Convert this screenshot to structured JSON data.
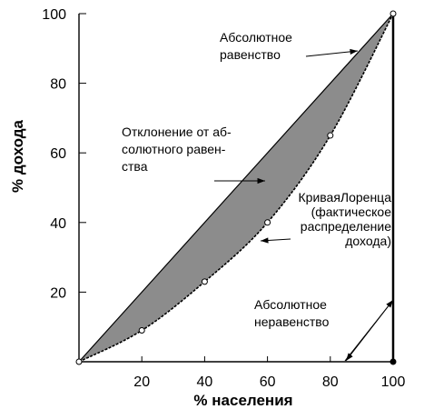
{
  "chart_data": {
    "type": "line",
    "xlabel": "% населения",
    "ylabel": "% дохода",
    "xlim": [
      0,
      100
    ],
    "ylim": [
      0,
      100
    ],
    "grid": false,
    "x_ticks": [
      "20",
      "40",
      "60",
      "80",
      "100"
    ],
    "y_ticks": [
      "20",
      "40",
      "60",
      "80",
      "100"
    ],
    "series": [
      {
        "x": [
          0,
          100
        ],
        "y": [
          0,
          100
        ]
      },
      {
        "x": [
          0,
          20,
          40,
          60,
          80,
          100
        ],
        "y": [
          0,
          9,
          23,
          40,
          65,
          100
        ]
      },
      {
        "x": [
          0,
          100,
          100
        ],
        "y": [
          0,
          0,
          100
        ]
      }
    ],
    "shaded_area": "between line and curve",
    "annotations": {
      "equality": [
        "Абсолютное",
        "равенство"
      ],
      "deviation": [
        "Отклонение от аб-",
        "солютного равен-",
        "ства"
      ],
      "lorenz": [
        "КриваяЛоренца",
        "(фактическое",
        "распределение",
        "дохода)"
      ],
      "inequality": [
        "Абсолютное",
        "неравенство"
      ]
    },
    "colors": {
      "shade": "#8c8c8c",
      "line": "#000000",
      "background": "#ffffff"
    }
  }
}
